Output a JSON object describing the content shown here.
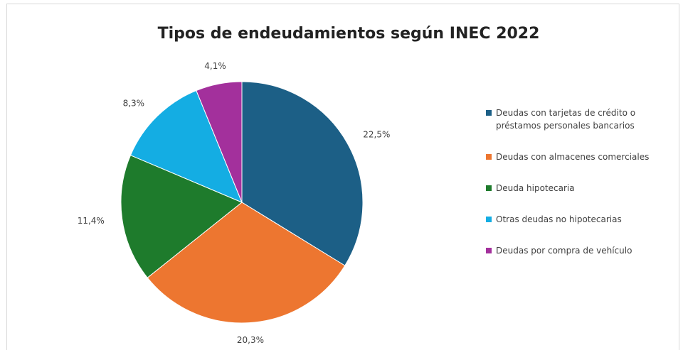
{
  "chart_data": {
    "type": "pie",
    "title": "Tipos de endeudamientos según INEC 2022",
    "categories": [
      "Deudas con tarjetas de crédito o préstamos personales bancarios",
      "Deudas con almacenes comerciales",
      "Deuda hipotecaria",
      "Otras deudas no hipotecarias",
      "Deudas por compra de vehículo"
    ],
    "values": [
      22.5,
      20.3,
      11.4,
      8.3,
      4.1
    ],
    "value_labels": [
      "22,5%",
      "20,3%",
      "11,4%",
      "8,3%",
      "4,1%"
    ],
    "colors": [
      "#1c5f86",
      "#ed7630",
      "#1e7b2c",
      "#14ade3",
      "#a3309c"
    ],
    "legend": "right"
  }
}
